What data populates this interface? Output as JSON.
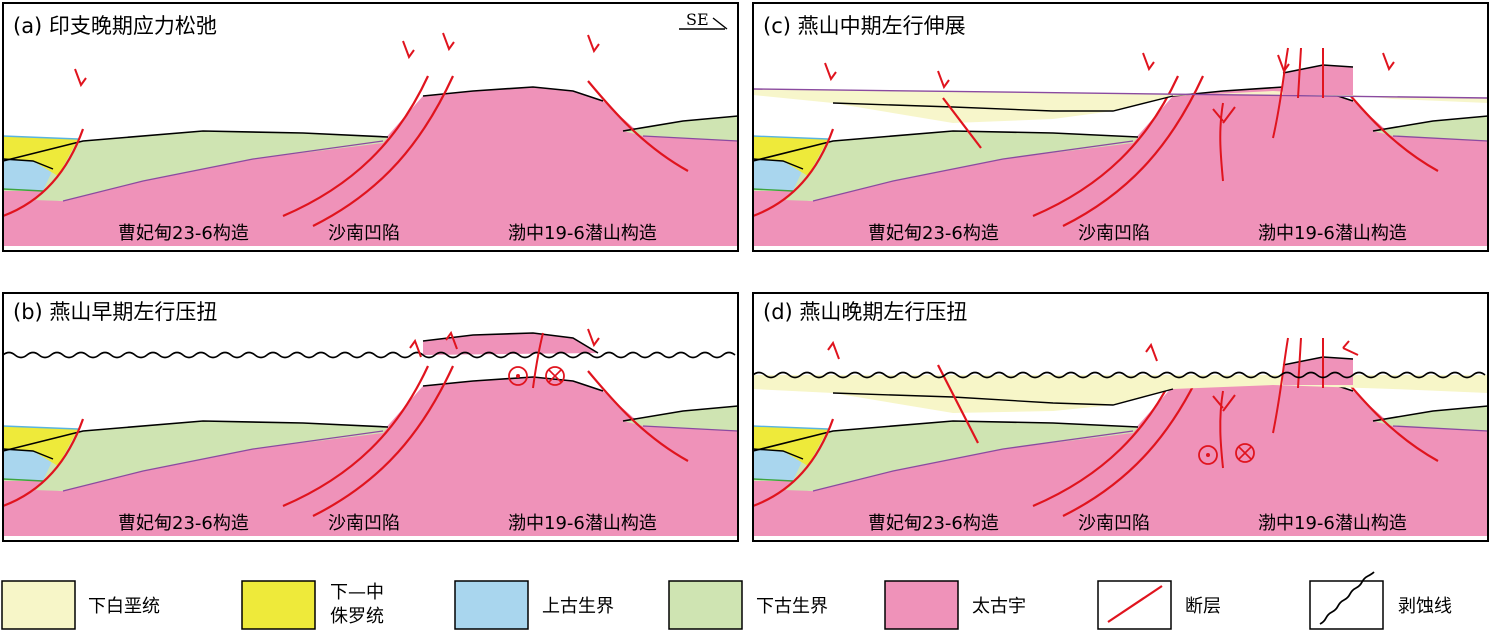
{
  "panels": [
    {
      "id": "a",
      "title": "(a) 印支晚期应力松弛",
      "direction": "SE"
    },
    {
      "id": "c",
      "title": "(c) 燕山中期左行伸展"
    },
    {
      "id": "b",
      "title": "(b) 燕山早期左行压扭"
    },
    {
      "id": "d",
      "title": "(d) 燕山晚期左行压扭"
    }
  ],
  "locations": {
    "left": "曹妃甸23-6构造",
    "middle": "沙南凹陷",
    "right": "渤中19-6潜山构造"
  },
  "legend": [
    {
      "label": "下白垩统",
      "color": "#f7f6c8"
    },
    {
      "label_line1": "下—中",
      "label_line2": "侏罗统",
      "color": "#eeea3a"
    },
    {
      "label": "上古生界",
      "color": "#a9d6ee"
    },
    {
      "label": "下古生界",
      "color": "#cfe4b2"
    },
    {
      "label": "太古宇",
      "color": "#ef92b9"
    },
    {
      "label": "断层",
      "color": "#e0141e"
    },
    {
      "label": "剥蚀线",
      "color": "#000000"
    }
  ]
}
